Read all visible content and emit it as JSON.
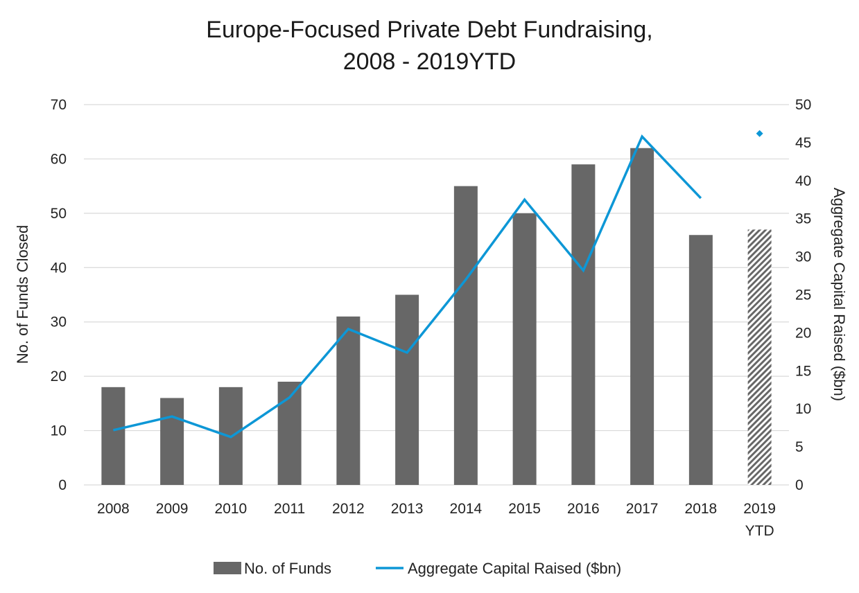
{
  "chart_data": {
    "type": "bar",
    "title_lines": [
      "Europe-Focused Private Debt Fundraising,",
      "2008 - 2019YTD"
    ],
    "categories": [
      [
        "2008"
      ],
      [
        "2009"
      ],
      [
        "2010"
      ],
      [
        "2011"
      ],
      [
        "2012"
      ],
      [
        "2013"
      ],
      [
        "2014"
      ],
      [
        "2015"
      ],
      [
        "2016"
      ],
      [
        "2017"
      ],
      [
        "2018"
      ],
      [
        "2019",
        "YTD"
      ]
    ],
    "ylabel": "No. of Funds Closed",
    "y2label": "Aggregate Capital Raised ($bn)",
    "ylim": [
      0,
      70
    ],
    "yticks": [
      0,
      10,
      20,
      30,
      40,
      50,
      60,
      70
    ],
    "y2lim": [
      0,
      50
    ],
    "y2ticks": [
      0,
      5,
      10,
      15,
      20,
      25,
      30,
      35,
      40,
      45,
      50
    ],
    "grid": true,
    "legend_position": "bottom",
    "series": [
      {
        "name": "No. of Funds",
        "kind": "bar",
        "axis": "left",
        "color": "#676767",
        "values": [
          18,
          16,
          18,
          19,
          31,
          35,
          55,
          50,
          59,
          62,
          46,
          47
        ],
        "hatched_index": 11
      },
      {
        "name": "Aggregate Capital Raised ($bn)",
        "kind": "line",
        "axis": "right",
        "color": "#0d97d6",
        "values": [
          7.2,
          9.0,
          6.3,
          11.5,
          20.5,
          17.4,
          27.0,
          37.5,
          28.2,
          45.8,
          37.7,
          46.2
        ],
        "marker_only_index": 11
      }
    ]
  }
}
